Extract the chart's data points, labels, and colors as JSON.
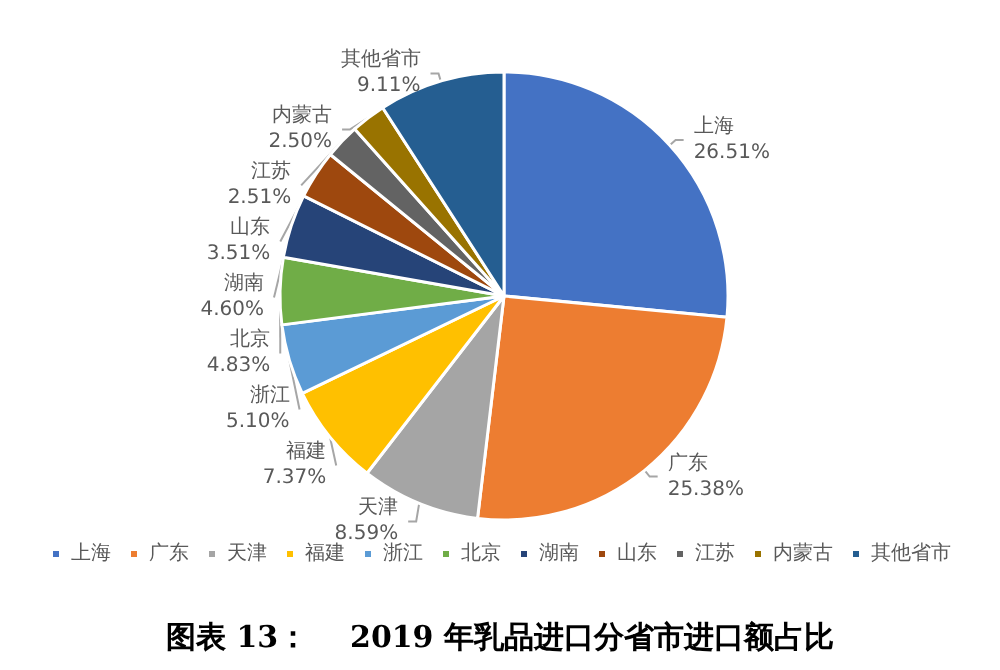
{
  "chart_data": {
    "type": "pie",
    "title": "图表 13：    2019 年乳品进口分省市进口额占比",
    "categories": [
      "上海",
      "广东",
      "天津",
      "福建",
      "浙江",
      "北京",
      "湖南",
      "山东",
      "江苏",
      "内蒙古",
      "其他省市"
    ],
    "values": [
      26.51,
      25.38,
      8.59,
      7.37,
      5.1,
      4.83,
      4.6,
      3.51,
      2.51,
      2.5,
      9.11
    ],
    "value_labels": [
      "26.51%",
      "25.38%",
      "8.59%",
      "7.37%",
      "5.10%",
      "4.83%",
      "4.60%",
      "3.51%",
      "2.51%",
      "2.50%",
      "9.11%"
    ],
    "colors": [
      "#4472c4",
      "#ed7d31",
      "#a5a5a5",
      "#ffc000",
      "#5b9bd5",
      "#70ad47",
      "#264478",
      "#9e480e",
      "#636363",
      "#997300",
      "#255e91"
    ],
    "legend": "bottom"
  }
}
